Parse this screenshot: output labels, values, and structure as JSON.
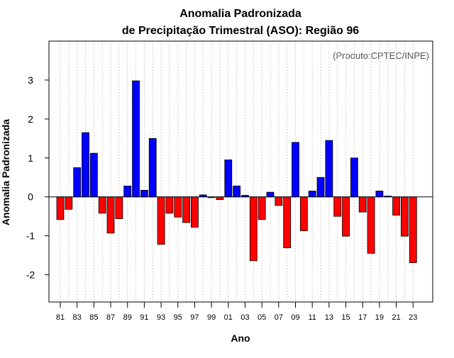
{
  "chart_data": {
    "type": "bar",
    "title": "Anomalia Padronizada",
    "subtitle": "de Precipitação Trimestral (ASO): Região 96",
    "xlabel": "Ano",
    "ylabel": "Anomalia Padronizada",
    "credit": "(Produto:CPTEC/INPE)",
    "ylim": [
      -2.7,
      4.0
    ],
    "yticks": [
      -2,
      -1,
      0,
      1,
      2,
      3
    ],
    "positive_color": "#0000ff",
    "negative_color": "#ff0000",
    "categories": [
      "81",
      "82",
      "83",
      "84",
      "85",
      "86",
      "87",
      "88",
      "89",
      "90",
      "91",
      "92",
      "93",
      "94",
      "95",
      "96",
      "97",
      "98",
      "99",
      "00",
      "01",
      "02",
      "03",
      "04",
      "05",
      "06",
      "07",
      "08",
      "09",
      "10",
      "11",
      "12",
      "13",
      "14",
      "15",
      "16",
      "17",
      "18",
      "19",
      "20",
      "21",
      "22",
      "23"
    ],
    "xtick_labels": [
      "81",
      "83",
      "85",
      "87",
      "89",
      "91",
      "93",
      "95",
      "97",
      "99",
      "01",
      "03",
      "05",
      "07",
      "09",
      "11",
      "13",
      "15",
      "17",
      "19",
      "21",
      "23"
    ],
    "values": [
      -0.58,
      -0.32,
      0.75,
      1.65,
      1.12,
      -0.42,
      -0.93,
      -0.56,
      0.28,
      2.98,
      0.17,
      1.5,
      -1.22,
      -0.42,
      -0.52,
      -0.66,
      -0.78,
      0.05,
      -0.02,
      -0.07,
      0.95,
      0.28,
      0.04,
      -1.64,
      -0.58,
      0.12,
      -0.22,
      -1.31,
      1.4,
      -0.87,
      0.15,
      0.5,
      1.45,
      -0.5,
      -1.01,
      1.0,
      -0.39,
      -1.45,
      0.15,
      0.02,
      -0.47,
      -1.01,
      -1.69
    ]
  }
}
